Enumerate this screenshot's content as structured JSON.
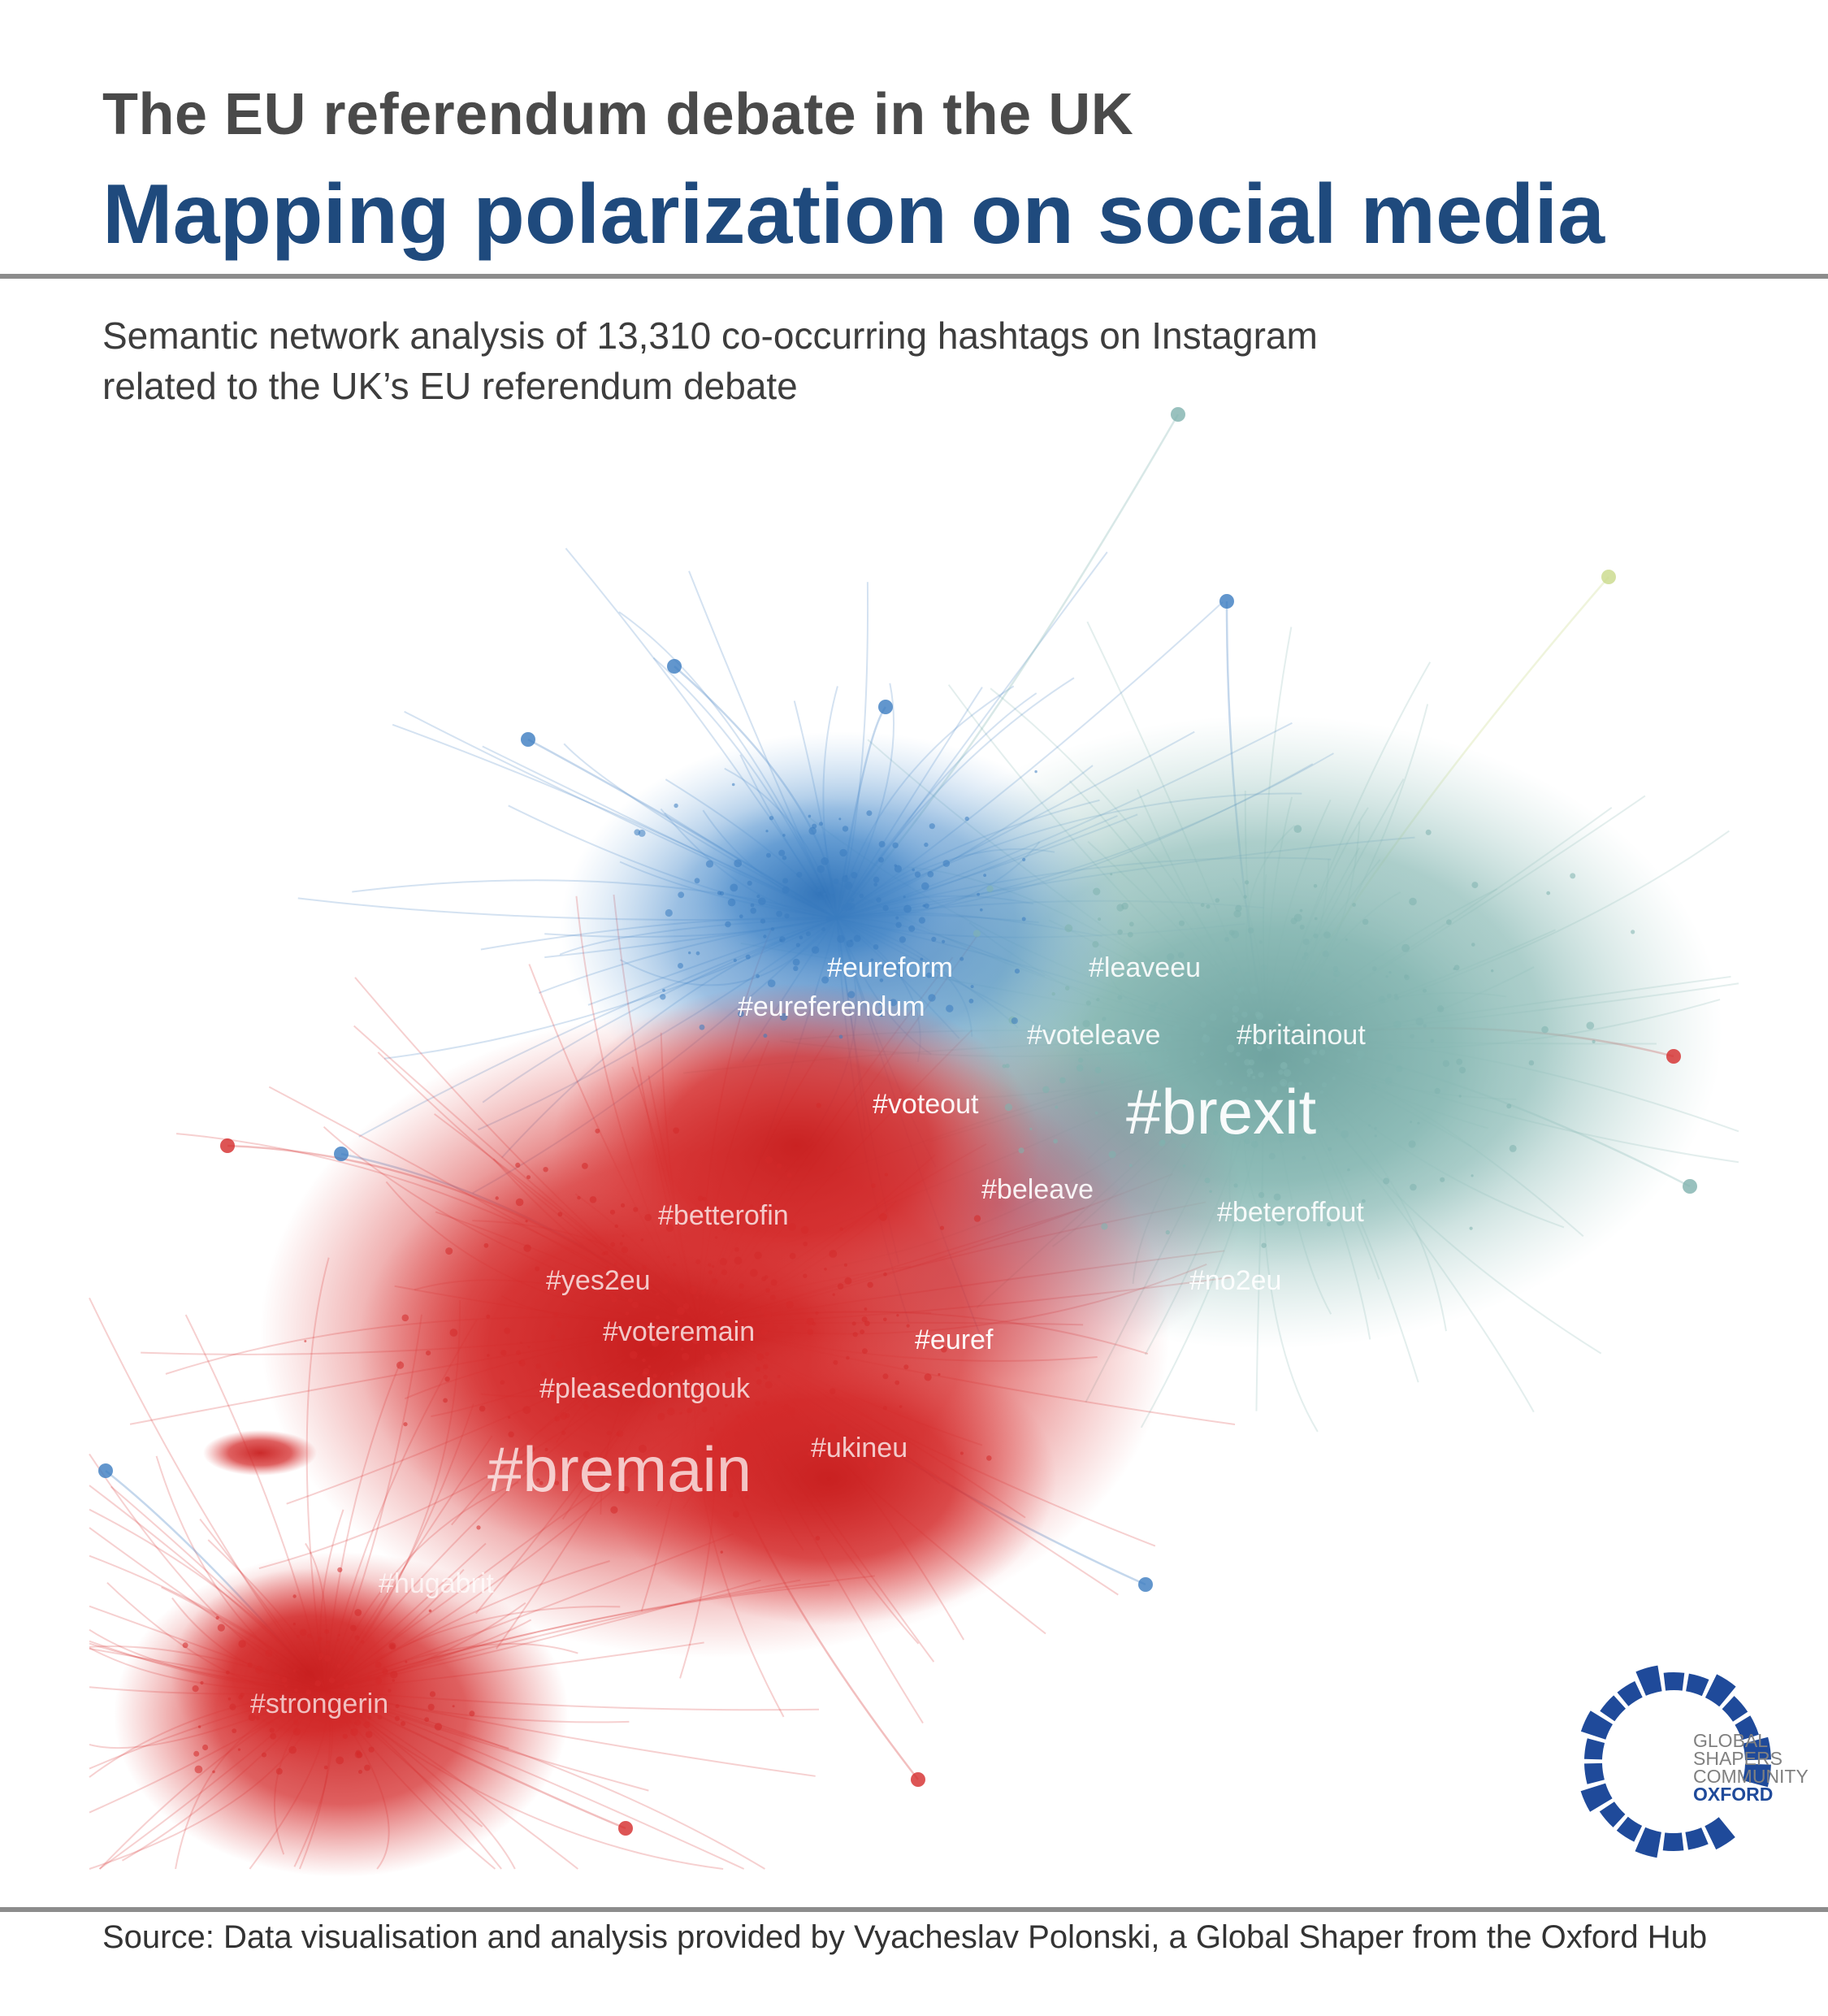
{
  "header": {
    "kicker": "The EU referendum debate in the UK",
    "title": "Mapping polarization on social media"
  },
  "subtitle": {
    "line1": "Semantic network analysis of 13,310 co-occurring hashtags on Instagram",
    "line2": "related to the UK’s EU referendum debate"
  },
  "network": {
    "clusters": {
      "remain": {
        "color": "#d42a2a"
      },
      "leave": {
        "color": "#7fb2ae"
      },
      "eu_debate": {
        "color": "#3b7cc0"
      },
      "misc": {
        "color": "#c9d98a"
      }
    },
    "labels": [
      {
        "id": "eureform",
        "text": "#eureform"
      },
      {
        "id": "leaveeu",
        "text": "#leaveeu"
      },
      {
        "id": "eureferendum",
        "text": "#eureferendum"
      },
      {
        "id": "voteleave",
        "text": "#voteleave"
      },
      {
        "id": "britainout",
        "text": "#britainout"
      },
      {
        "id": "voteout",
        "text": "#voteout"
      },
      {
        "id": "brexit",
        "text": "#brexit"
      },
      {
        "id": "beleave",
        "text": "#beleave"
      },
      {
        "id": "betterofin",
        "text": "#betterofin"
      },
      {
        "id": "beteroffout",
        "text": "#beteroffout"
      },
      {
        "id": "yes2eu",
        "text": "#yes2eu"
      },
      {
        "id": "no2eu",
        "text": "#no2eu"
      },
      {
        "id": "voteremain",
        "text": "#voteremain"
      },
      {
        "id": "euref",
        "text": "#euref"
      },
      {
        "id": "pleasedontgouk",
        "text": "#pleasedontgouk"
      },
      {
        "id": "ukineu",
        "text": "#ukineu"
      },
      {
        "id": "bremain",
        "text": "#bremain"
      },
      {
        "id": "hugabrit",
        "text": "#hugabrit"
      },
      {
        "id": "strongerin",
        "text": "#strongerin"
      }
    ]
  },
  "logo": {
    "line1": "GLOBAL",
    "line2": "SHAPERS",
    "line3": "COMMUNITY",
    "line4": "OXFORD",
    "color": "#1f4a9a"
  },
  "source": "Source: Data visualisation and analysis provided by Vyacheslav Polonski, a Global Shaper from the Oxford Hub"
}
